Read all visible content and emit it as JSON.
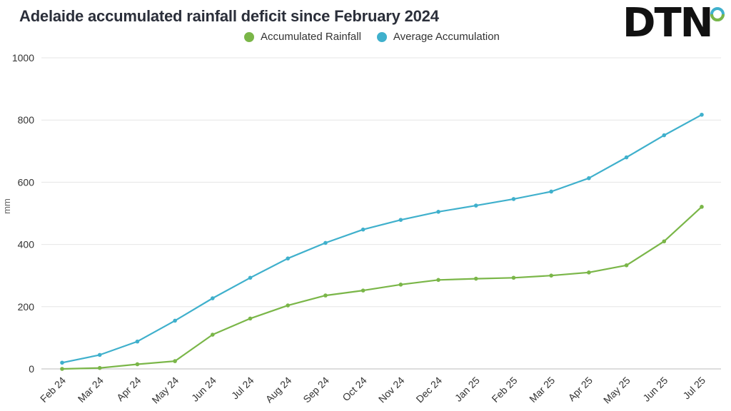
{
  "chart_data": {
    "type": "line",
    "title": "Adelaide accumulated rainfall deficit since February 2024",
    "ylabel": "mm",
    "xlabel": "",
    "ylim": [
      0,
      1000
    ],
    "yticks": [
      0,
      200,
      400,
      600,
      800,
      1000
    ],
    "grid": true,
    "legend_position": "top-center",
    "categories": [
      "Feb 24",
      "Mar 24",
      "Apr 24",
      "May 24",
      "Jun 24",
      "Jul 24",
      "Aug 24",
      "Sep 24",
      "Oct 24",
      "Nov 24",
      "Dec 24",
      "Jan 25",
      "Feb 25",
      "Mar 25",
      "Apr 25",
      "May 25",
      "Jun 25",
      "Jul 25"
    ],
    "series": [
      {
        "name": "Accumulated Rainfall",
        "color": "#7ab648",
        "values": [
          0,
          3,
          15,
          25,
          110,
          162,
          204,
          236,
          252,
          271,
          286,
          290,
          293,
          300,
          310,
          333,
          410,
          521
        ]
      },
      {
        "name": "Average Accumulation",
        "color": "#3fb0cc",
        "values": [
          20,
          45,
          88,
          155,
          227,
          293,
          355,
          405,
          448,
          479,
          505,
          525,
          546,
          570,
          613,
          680,
          751,
          817
        ]
      }
    ]
  },
  "logo": {
    "text": "DTN",
    "dot_colors": [
      "#3fb0cc",
      "#7ab648"
    ]
  }
}
